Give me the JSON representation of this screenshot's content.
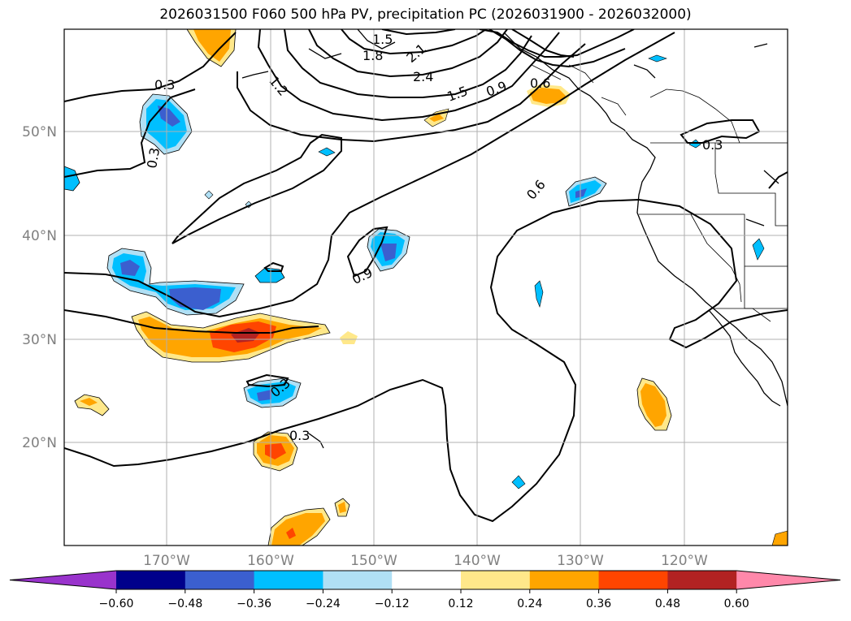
{
  "title": "2026031500 F060 500 hPa PV, precipitation PC (2026031900 - 2026032000)",
  "axes": {
    "lat_labels": [
      "50°N",
      "40°N",
      "30°N",
      "20°N"
    ],
    "lon_labels": [
      "170°W",
      "160°W",
      "150°W",
      "140°W",
      "130°W",
      "120°W"
    ]
  },
  "contour_labels": [
    "1.5",
    "1.8",
    "2.1",
    "2.4",
    "1.5",
    "0.9",
    "0.6",
    "0.3",
    "0.3",
    "1.2",
    "0.3",
    "0.6",
    "0.9",
    "0.3",
    "0.3"
  ],
  "colorbar": {
    "tick_labels": [
      "−0.60",
      "−0.48",
      "−0.36",
      "−0.24",
      "−0.12",
      "0.12",
      "0.24",
      "0.36",
      "0.48",
      "0.60"
    ],
    "colors": [
      "#9933cc",
      "#00008b",
      "#3b5fcf",
      "#00bfff",
      "#b0e0f5",
      "#ffffff",
      "#ffe88a",
      "#ffa500",
      "#ff4500",
      "#b22222",
      "#ff88aa"
    ]
  },
  "colors": {
    "neg_strong": "#3b5fcf",
    "neg_mid": "#00bfff",
    "neg_weak": "#b0e0f5",
    "pos_weak": "#ffe88a",
    "pos_mid": "#ffa500",
    "pos_strong": "#ff4500",
    "grid": "#b0b0b0",
    "tick_text": "#808080"
  }
}
